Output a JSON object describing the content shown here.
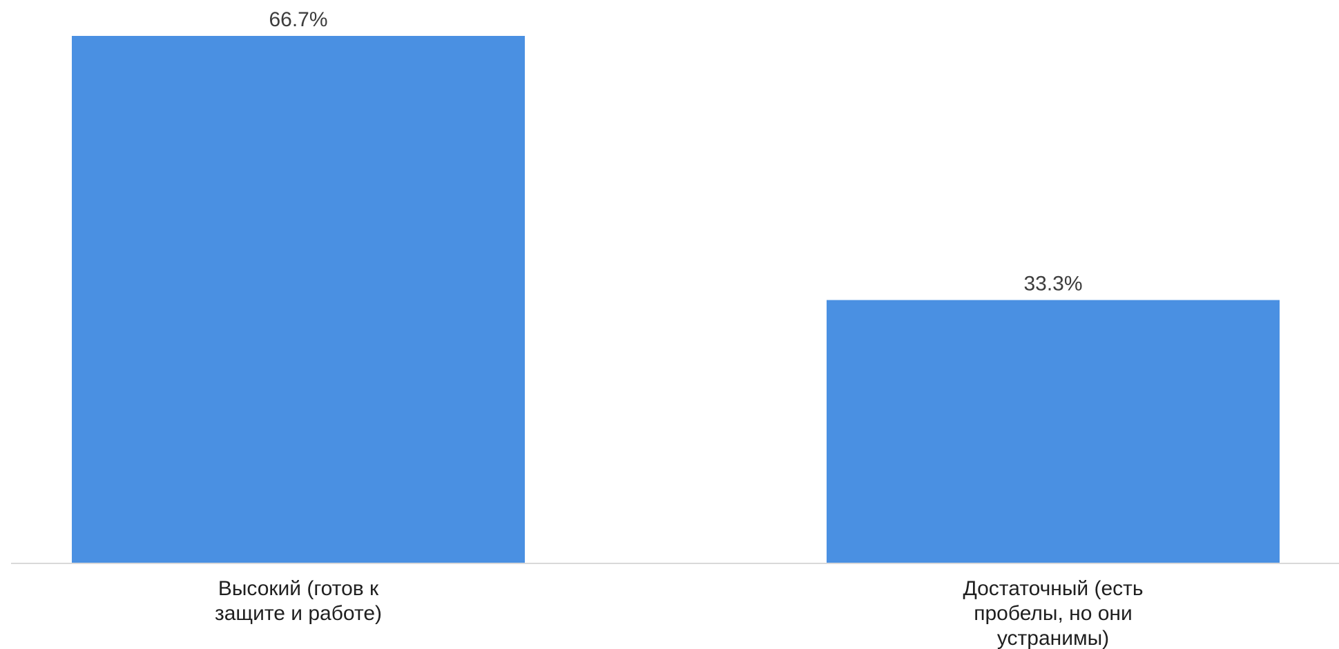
{
  "chart_data": {
    "type": "bar",
    "categories": [
      [
        "Высокий (готов к",
        "защите и работе)"
      ],
      [
        "Достаточный (есть",
        "пробелы, но они",
        "устранимы)"
      ]
    ],
    "values": [
      66.7,
      33.3
    ],
    "value_labels": [
      "66.7%",
      "33.3%"
    ],
    "title": "",
    "xlabel": "",
    "ylabel": "",
    "ylim": [
      0,
      66.7
    ],
    "grid": false,
    "legend": "none",
    "bar_color": "#4a90e2",
    "axis_color": "#d9d9d9"
  }
}
